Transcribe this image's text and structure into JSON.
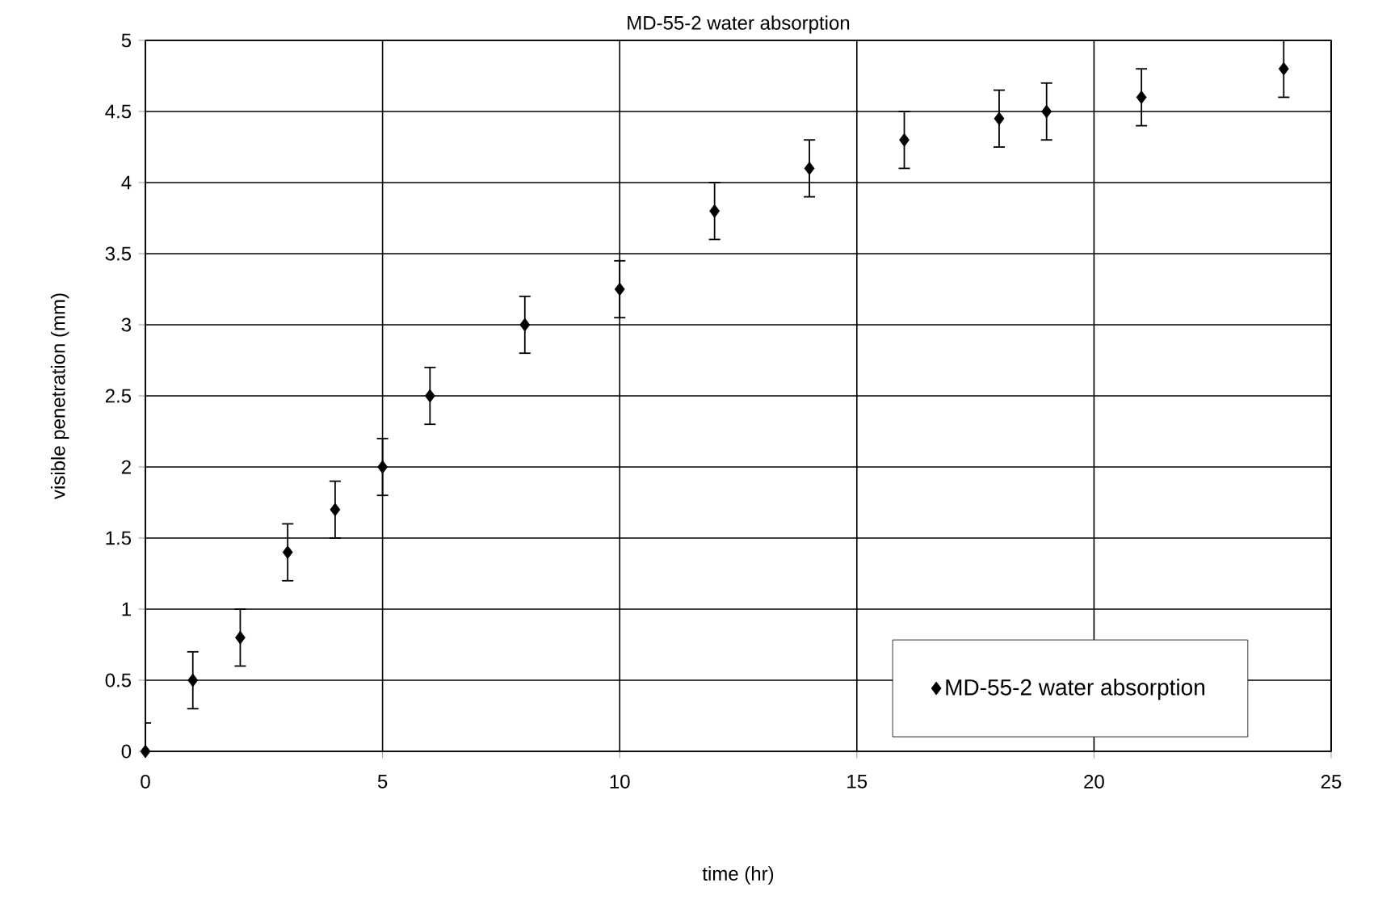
{
  "chart_data": {
    "type": "scatter",
    "title": "MD-55-2 water absorption",
    "xlabel": "time (hr)",
    "ylabel": "visible penetration (mm)",
    "series": [
      {
        "name": "MD-55-2 water absorption",
        "color": "#000000",
        "x": [
          0,
          1,
          2,
          3,
          4,
          5,
          6,
          8,
          10,
          12,
          14,
          16,
          18,
          19,
          21,
          24
        ],
        "values": [
          0,
          0.5,
          0.8,
          1.4,
          1.7,
          2.0,
          2.5,
          3.0,
          3.25,
          3.8,
          4.1,
          4.3,
          4.45,
          4.5,
          4.6,
          4.8
        ],
        "errors": [
          0.2,
          0.2,
          0.2,
          0.2,
          0.2,
          0.2,
          0.2,
          0.2,
          0.2,
          0.2,
          0.2,
          0.2,
          0.2,
          0.2,
          0.2,
          0.2
        ]
      }
    ],
    "xlim": [
      0,
      25
    ],
    "ylim": [
      0,
      5
    ],
    "xticks": [
      0,
      5,
      10,
      15,
      20,
      25
    ],
    "yticks": [
      0,
      0.5,
      1,
      1.5,
      2,
      2.5,
      3,
      3.5,
      4,
      4.5,
      5
    ],
    "grid": true,
    "legend": "bottom right",
    "marker": "diamond"
  }
}
